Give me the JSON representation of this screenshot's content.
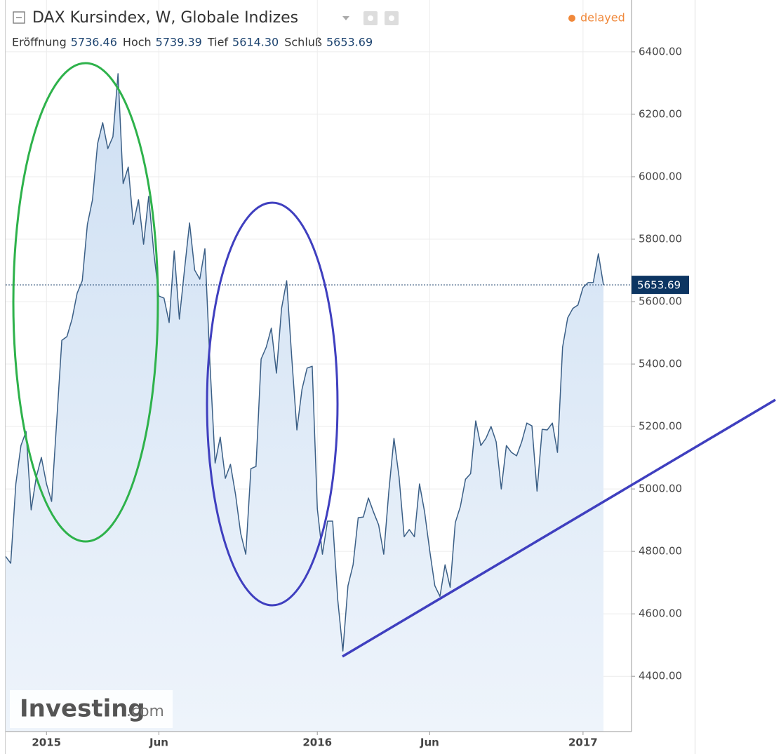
{
  "chart_data": {
    "type": "line",
    "title": "DAX Kursindex, W, Globale Indizes",
    "ohlc": [
      {
        "label": "Eröffnung",
        "value": "5736.46"
      },
      {
        "label": "Hoch",
        "value": "5739.39"
      },
      {
        "label": "Tief",
        "value": "5614.30"
      },
      {
        "label": "Schluß",
        "value": "5653.69"
      }
    ],
    "status": "delayed",
    "watermark": {
      "brand": "Investing",
      "suffix": ".com"
    },
    "categories": [
      null,
      null,
      null,
      null,
      null,
      null,
      null,
      null,
      "2015",
      null,
      null,
      null,
      null,
      null,
      null,
      null,
      null,
      null,
      null,
      null,
      null,
      null,
      null,
      null,
      null,
      null,
      null,
      null,
      null,
      null,
      "Jun",
      null,
      null,
      null,
      null,
      null,
      null,
      null,
      null,
      null,
      null,
      null,
      null,
      null,
      null,
      null,
      null,
      null,
      null,
      null,
      null,
      null,
      null,
      null,
      null,
      null,
      null,
      null,
      null,
      null,
      null,
      "2016",
      null,
      null,
      null,
      null,
      null,
      null,
      null,
      null,
      null,
      null,
      null,
      null,
      null,
      null,
      null,
      null,
      null,
      null,
      null,
      null,
      null,
      "Jun",
      null,
      null,
      null,
      null,
      null,
      null,
      null,
      null,
      null,
      null,
      null,
      null,
      null,
      null,
      null,
      null,
      null,
      null,
      null,
      null,
      null,
      null,
      null,
      null,
      null,
      null,
      null,
      null,
      null,
      "2017",
      null,
      null,
      null,
      null
    ],
    "series": [
      {
        "color": "#3b5f86",
        "fill": "#dbe8f6",
        "values": [
          4784,
          4762,
          5016,
          5139,
          5184,
          4933,
          5038,
          5101,
          5016,
          4960,
          5218,
          5476,
          5488,
          5544,
          5627,
          5667,
          5847,
          5926,
          6106,
          6173,
          6090,
          6128,
          6330,
          5978,
          6031,
          5847,
          5926,
          5784,
          5937,
          5757,
          5618,
          5611,
          5533,
          5762,
          5544,
          5701,
          5852,
          5701,
          5672,
          5769,
          5398,
          5083,
          5166,
          5034,
          5079,
          4982,
          4858,
          4791,
          5065,
          5072,
          5416,
          5454,
          5515,
          5371,
          5578,
          5667,
          5420,
          5189,
          5319,
          5387,
          5393,
          4937,
          4791,
          4897,
          4897,
          4645,
          4481,
          4690,
          4757,
          4908,
          4910,
          4971,
          4926,
          4885,
          4791,
          4993,
          5162,
          5038,
          4847,
          4870,
          4847,
          5016,
          4926,
          4802,
          4690,
          4656,
          4757,
          4685,
          4892,
          4944,
          5031,
          5049,
          5218,
          5139,
          5162,
          5200,
          5151,
          5000,
          5139,
          5117,
          5106,
          5151,
          5211,
          5202,
          4993,
          5191,
          5189,
          5211,
          5117,
          5454,
          5548,
          5578,
          5589,
          5645,
          5661,
          5661,
          5753,
          5653.69
        ]
      }
    ],
    "ylim": [
      4223,
      6566
    ],
    "yticks": [
      {
        "value": 4400,
        "label": "4400.00"
      },
      {
        "value": 4600,
        "label": "4600.00"
      },
      {
        "value": 4800,
        "label": "4800.00"
      },
      {
        "value": 5000,
        "label": "5000.00"
      },
      {
        "value": 5200,
        "label": "5200.00"
      },
      {
        "value": 5400,
        "label": "5400.00"
      },
      {
        "value": 5600,
        "label": "5600.00"
      },
      {
        "value": 5800,
        "label": "5800.00"
      },
      {
        "value": 6000,
        "label": "6000.00"
      },
      {
        "value": 6200,
        "label": "6200.00"
      },
      {
        "value": 6400,
        "label": "6400.00"
      }
    ],
    "grid": true,
    "last_price_line": true
  }
}
